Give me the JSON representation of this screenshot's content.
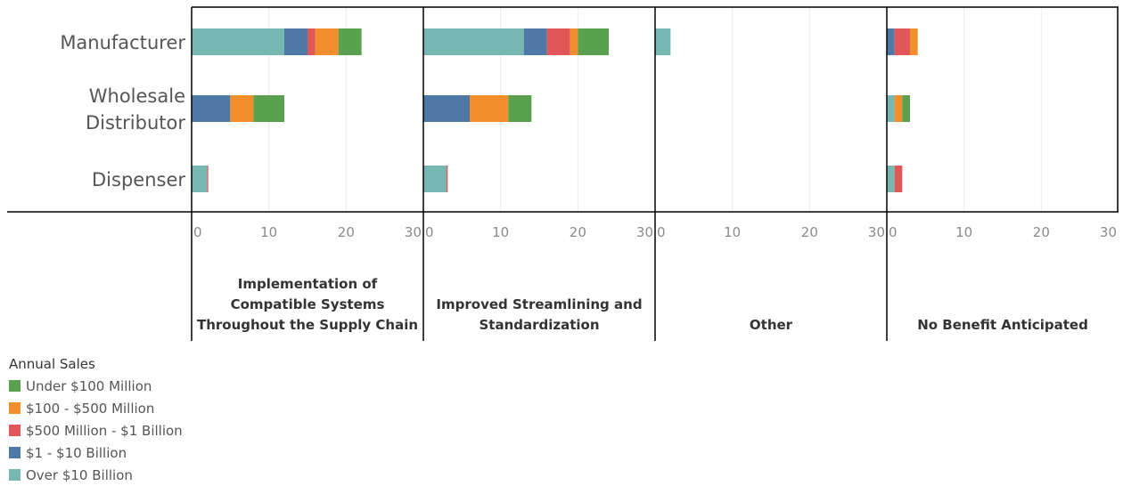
{
  "chart_data": {
    "type": "bar",
    "orientation": "horizontal",
    "stacked": true,
    "categories": [
      "Manufacturer",
      "Wholesale Distributor",
      "Dispenser"
    ],
    "category_display": [
      [
        "Manufacturer"
      ],
      [
        "Wholesale",
        "Distributor"
      ],
      [
        "Dispenser"
      ]
    ],
    "panels": [
      {
        "title_lines": [
          "Implementation of",
          "Compatible Systems",
          "Throughout the Supply Chain"
        ],
        "series": [
          {
            "name": "Over $10 Billion",
            "values": [
              12,
              0,
              2
            ]
          },
          {
            "name": "$1 - $10 Billion",
            "values": [
              3,
              5,
              0
            ]
          },
          {
            "name": "$500 Million - $1 Billion",
            "values": [
              1,
              0,
              0.15
            ]
          },
          {
            "name": "$100 - $500 Million",
            "values": [
              3,
              3,
              0
            ]
          },
          {
            "name": "Under $100 Million",
            "values": [
              3,
              4,
              0
            ]
          }
        ]
      },
      {
        "title_lines": [
          "Improved Streamlining and",
          "Standardization"
        ],
        "series": [
          {
            "name": "Over $10 Billion",
            "values": [
              13,
              0,
              3
            ]
          },
          {
            "name": "$1 - $10 Billion",
            "values": [
              3,
              6,
              0
            ]
          },
          {
            "name": "$500 Million - $1 Billion",
            "values": [
              3,
              0,
              0.15
            ]
          },
          {
            "name": "$100 - $500 Million",
            "values": [
              1,
              5,
              0
            ]
          },
          {
            "name": "Under $100 Million",
            "values": [
              4,
              3,
              0
            ]
          }
        ]
      },
      {
        "title_lines": [
          "Other"
        ],
        "series": [
          {
            "name": "Over $10 Billion",
            "values": [
              2,
              0,
              0
            ]
          },
          {
            "name": "$1 - $10 Billion",
            "values": [
              0,
              0,
              0
            ]
          },
          {
            "name": "$500 Million - $1 Billion",
            "values": [
              0,
              0,
              0
            ]
          },
          {
            "name": "$100 - $500 Million",
            "values": [
              0,
              0,
              0
            ]
          },
          {
            "name": "Under $100 Million",
            "values": [
              0,
              0,
              0
            ]
          }
        ]
      },
      {
        "title_lines": [
          "No Benefit Anticipated"
        ],
        "series": [
          {
            "name": "Over $10 Billion",
            "values": [
              0,
              1,
              1
            ]
          },
          {
            "name": "$1 - $10 Billion",
            "values": [
              1,
              0,
              0
            ]
          },
          {
            "name": "$500 Million - $1 Billion",
            "values": [
              2,
              0,
              1
            ]
          },
          {
            "name": "$100 - $500 Million",
            "values": [
              1,
              1,
              0
            ]
          },
          {
            "name": "Under $100 Million",
            "values": [
              0,
              1,
              0
            ]
          }
        ]
      }
    ],
    "xlim": [
      0,
      30
    ],
    "xticks": [
      0,
      10,
      20,
      30
    ],
    "grid": true,
    "legend": {
      "title": "Annual Sales",
      "position": "bottom-left",
      "items": [
        {
          "name": "Under $100 Million",
          "color": "#59a14f"
        },
        {
          "name": "$100 - $500 Million",
          "color": "#f28e2b"
        },
        {
          "name": "$500 Million - $1 Billion",
          "color": "#e15759"
        },
        {
          "name": "$1 - $10 Billion",
          "color": "#4e79a7"
        },
        {
          "name": "Over $10 Billion",
          "color": "#76b7b2"
        }
      ]
    }
  }
}
